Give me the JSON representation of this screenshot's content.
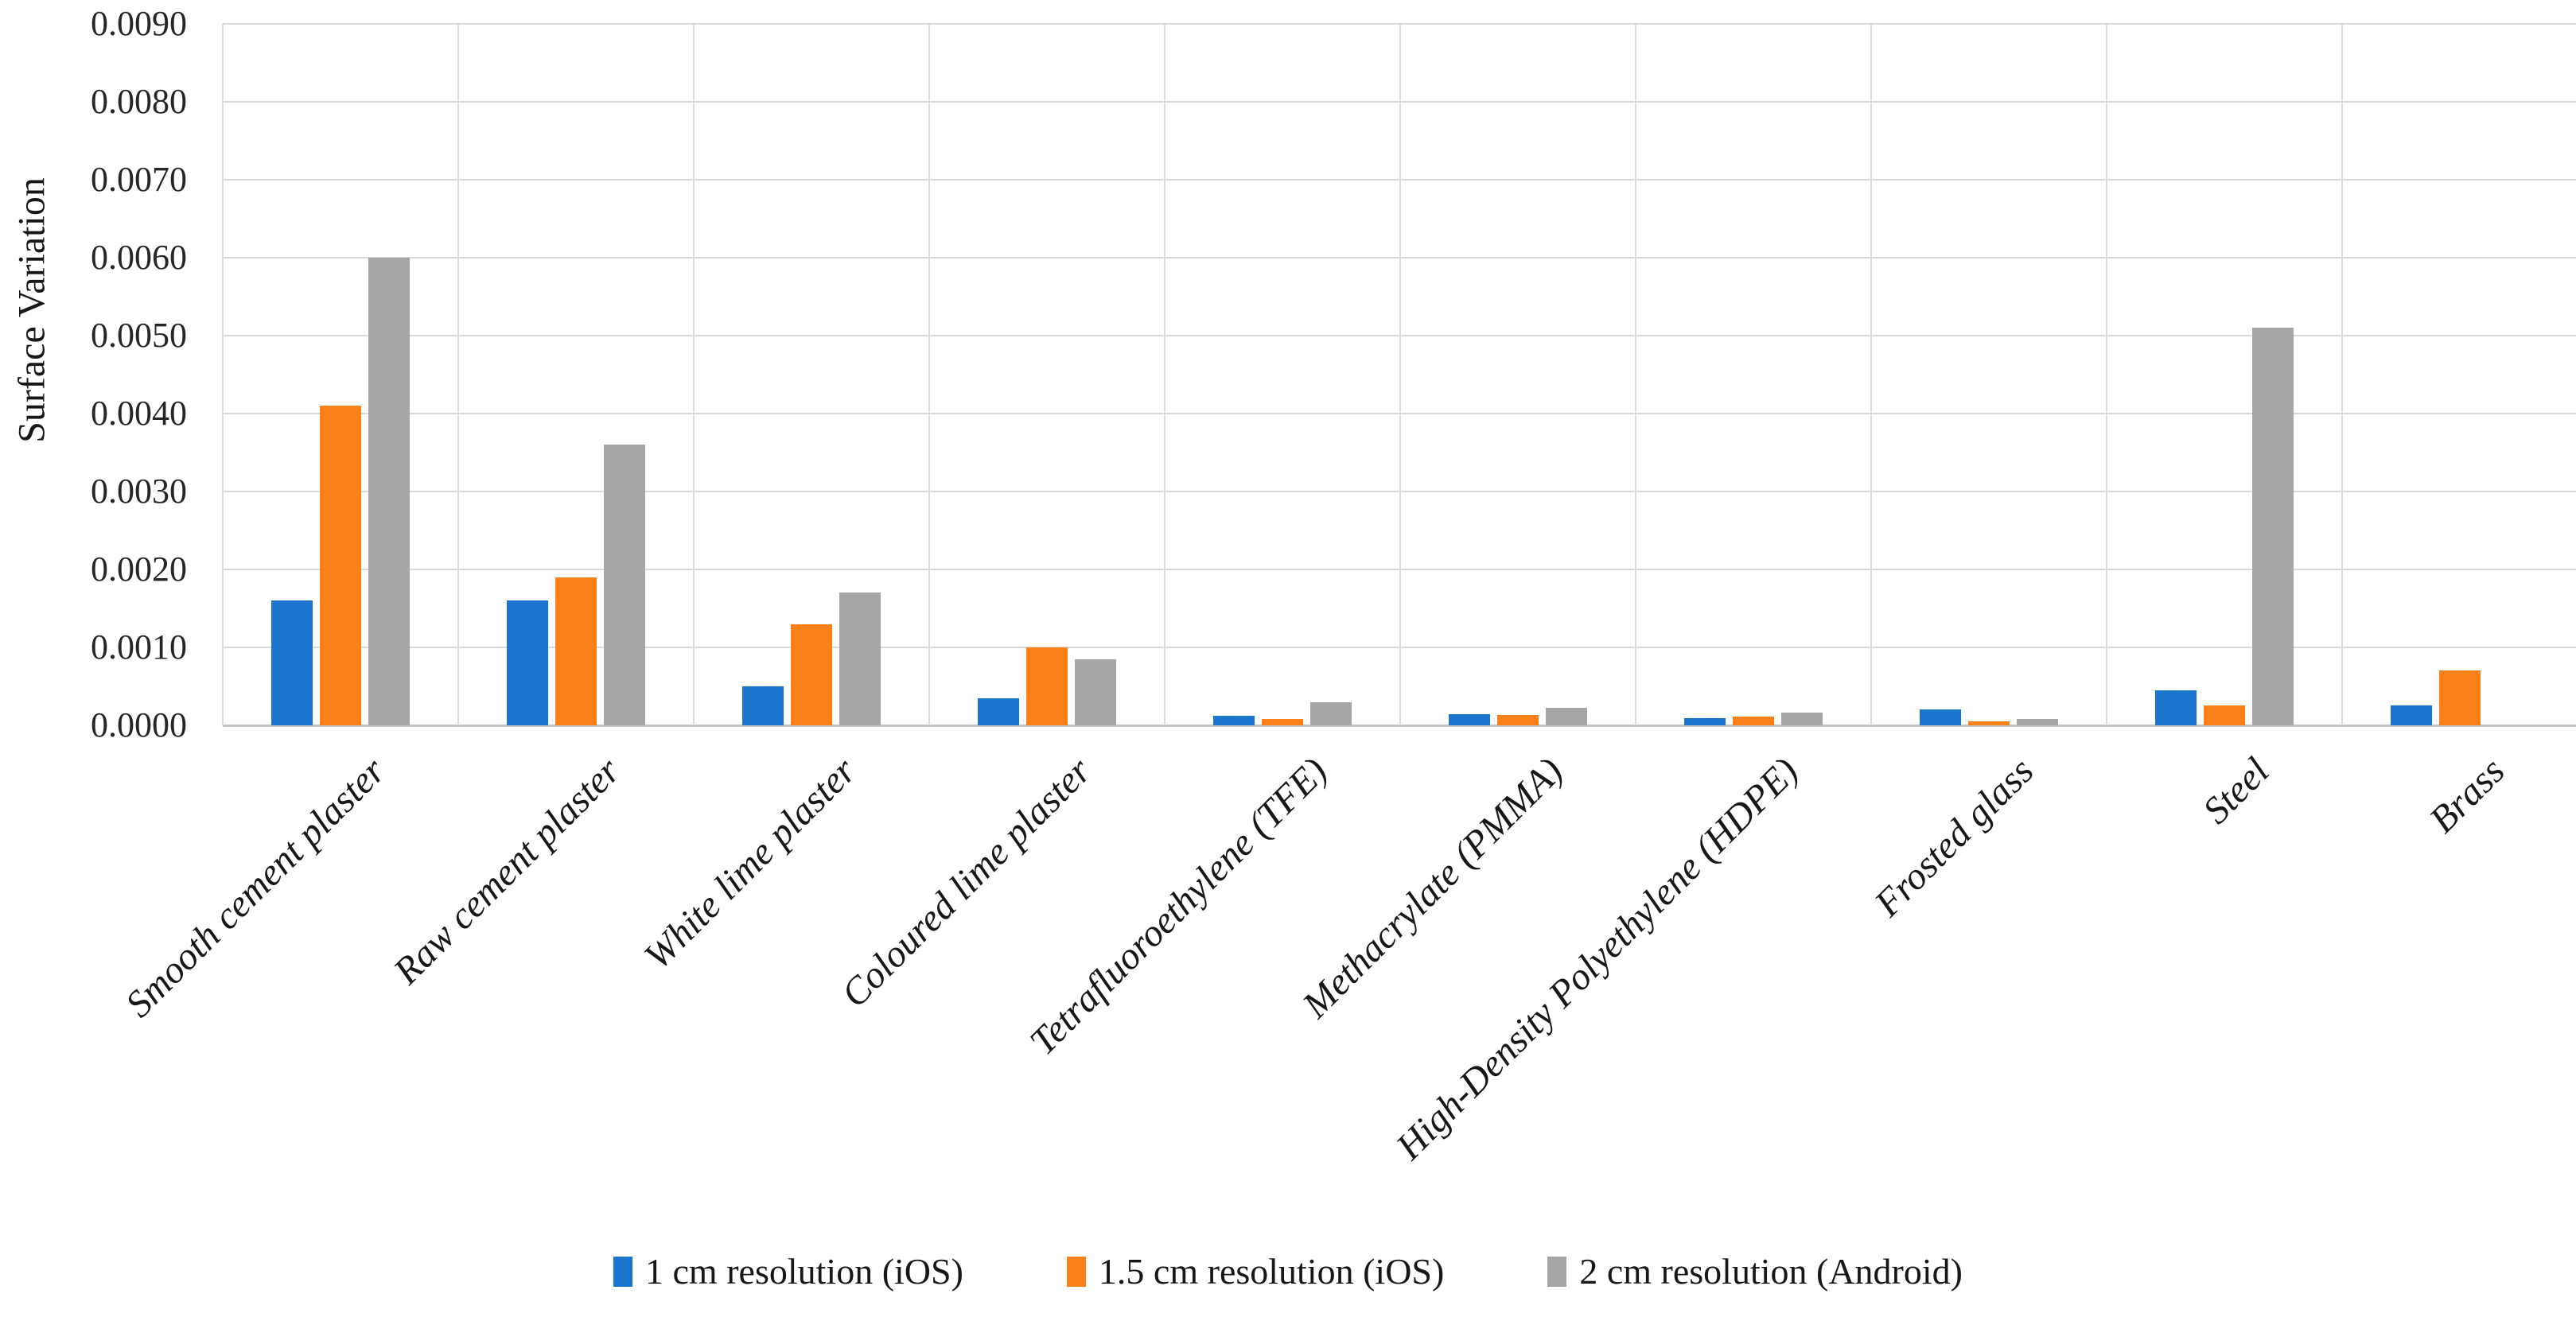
{
  "chart_data": {
    "type": "bar",
    "title": "",
    "xlabel": "",
    "ylabel": "Surface Variation",
    "ylim": [
      0,
      0.009
    ],
    "ytick_step": 0.001,
    "ytick_labels": [
      "0.0000",
      "0.0010",
      "0.0020",
      "0.0030",
      "0.0040",
      "0.0050",
      "0.0060",
      "0.0070",
      "0.0080",
      "0.0090"
    ],
    "grid": "horizontal and vertical category boundaries, light gray",
    "legend_position": "bottom-center",
    "categories": [
      "Smooth cement plaster",
      "Raw cement plaster",
      "White lime plaster",
      "Coloured lime plaster",
      "Tetrafluoroethylene (TFE)",
      "Methacrylate (PMMA)",
      "High-Density Polyethylene (HDPE)",
      "Frosted glass",
      "Steel",
      "Brass"
    ],
    "series": [
      {
        "name": "1 cm resolution (iOS)",
        "color": "#1b74ce",
        "values": [
          0.0016,
          0.0016,
          0.0005,
          0.00035,
          0.00012,
          0.00014,
          9e-05,
          0.0002,
          0.00045,
          0.00025
        ]
      },
      {
        "name": "1.5 cm resolution (iOS)",
        "color": "#fb8019",
        "values": [
          0.0041,
          0.0019,
          0.0013,
          0.001,
          8e-05,
          0.00013,
          0.00011,
          5e-05,
          0.00025,
          0.0007
        ]
      },
      {
        "name": "2 cm resolution (Android)",
        "color": "#a6a6a6",
        "values": [
          0.006,
          0.0036,
          0.0017,
          0.00085,
          0.0003,
          0.00022,
          0.00016,
          8e-05,
          0.0051,
          0
        ]
      }
    ],
    "colors": {
      "gridline": "#d9d9d9",
      "axis_line": "#c6c6c6",
      "text": "#171717"
    }
  }
}
